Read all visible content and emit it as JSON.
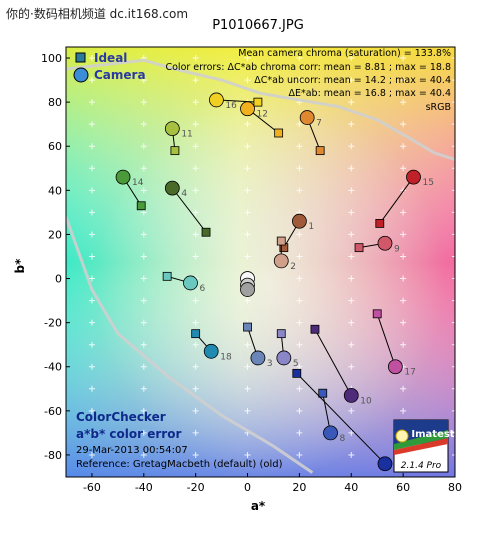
{
  "watermark": "你的·数码相机频道 dc.it168.com",
  "chart_data": {
    "type": "scatter",
    "title": "P1010667.JPG",
    "xlabel": "a*",
    "ylabel": "b*",
    "xlim": [
      -70,
      80
    ],
    "ylim": [
      -90,
      105
    ],
    "xticks": [
      -60,
      -40,
      -20,
      0,
      20,
      40,
      60,
      80
    ],
    "yticks": [
      -80,
      -60,
      -40,
      -20,
      0,
      20,
      40,
      60,
      80,
      100
    ],
    "grid": true,
    "legend": [
      {
        "name": "Ideal",
        "marker": "square",
        "color": "#2a7a9a"
      },
      {
        "name": "Camera",
        "marker": "circle",
        "color": "#3b8ed6"
      }
    ],
    "stats": [
      "Mean camera chroma (saturation) = 133.8%",
      "Color errors:  ΔC*ab chroma corr:  mean = 8.81 ;  max = 18.8",
      "ΔC*ab uncorr:  mean = 14.2 ;  max = 40.4",
      "ΔE*ab:  mean = 16.8 ;  max = 40.4",
      "sRGB"
    ],
    "info": {
      "name": "ColorChecker",
      "subtitle": "a*b* color error",
      "date": "29-Mar-2013 00:54:07",
      "reference": "Reference: GretagMacbeth (default) (old)"
    },
    "badge": {
      "brand": "Imatest",
      "version": "2.1.4 Pro"
    },
    "srgb_gamut": [
      [
        -70,
        95
      ],
      [
        -55,
        97
      ],
      [
        -40,
        99
      ],
      [
        -28,
        95
      ],
      [
        -10,
        90
      ],
      [
        5,
        84
      ],
      [
        20,
        81
      ],
      [
        35,
        78
      ],
      [
        50,
        72
      ],
      [
        62,
        64
      ],
      [
        72,
        57
      ],
      [
        80,
        54
      ]
    ],
    "points": [
      {
        "id": "1",
        "ideal": [
          14,
          14
        ],
        "camera": [
          20,
          26
        ],
        "color": "#a05a3a"
      },
      {
        "id": "2",
        "ideal": [
          13,
          17
        ],
        "camera": [
          13,
          8
        ],
        "color": "#d1a08a"
      },
      {
        "id": "3",
        "ideal": [
          0,
          -22
        ],
        "camera": [
          4,
          -36
        ],
        "color": "#6a86b8"
      },
      {
        "id": "4",
        "ideal": [
          -16,
          21
        ],
        "camera": [
          -29,
          41
        ],
        "color": "#4a6a2a"
      },
      {
        "id": "5",
        "ideal": [
          13,
          -25
        ],
        "camera": [
          14,
          -36
        ],
        "color": "#8a86c8"
      },
      {
        "id": "6",
        "ideal": [
          -31,
          1
        ],
        "camera": [
          -22,
          -2
        ],
        "color": "#6ac8c0"
      },
      {
        "id": "7",
        "ideal": [
          28,
          58
        ],
        "camera": [
          23,
          73
        ],
        "color": "#e08830"
      },
      {
        "id": "8",
        "ideal": [
          29,
          -52
        ],
        "camera": [
          32,
          -70
        ],
        "color": "#3a58b8"
      },
      {
        "id": "9",
        "ideal": [
          43,
          14
        ],
        "camera": [
          53,
          16
        ],
        "color": "#d05868"
      },
      {
        "id": "10",
        "ideal": [
          26,
          -23
        ],
        "camera": [
          40,
          -53
        ],
        "color": "#502a7a"
      },
      {
        "id": "11",
        "ideal": [
          -28,
          58
        ],
        "camera": [
          -29,
          68
        ],
        "color": "#a8c040"
      },
      {
        "id": "12",
        "ideal": [
          12,
          66
        ],
        "camera": [
          0,
          77
        ],
        "color": "#f0b020"
      },
      {
        "id": "13",
        "ideal": [
          19,
          -43
        ],
        "camera": [
          53,
          -84
        ],
        "color": "#1a30a0"
      },
      {
        "id": "14",
        "ideal": [
          -41,
          33
        ],
        "camera": [
          -48,
          46
        ],
        "color": "#4a9a3a"
      },
      {
        "id": "15",
        "ideal": [
          51,
          25
        ],
        "camera": [
          64,
          46
        ],
        "color": "#c02028"
      },
      {
        "id": "16",
        "ideal": [
          4,
          80
        ],
        "camera": [
          -12,
          81
        ],
        "color": "#f0d020"
      },
      {
        "id": "17",
        "ideal": [
          50,
          -16
        ],
        "camera": [
          57,
          -40
        ],
        "color": "#c050a0"
      },
      {
        "id": "18",
        "ideal": [
          -20,
          -25
        ],
        "camera": [
          -14,
          -33
        ],
        "color": "#208ab0"
      },
      {
        "id": "19",
        "ideal": [
          0,
          0
        ],
        "camera": [
          0,
          0
        ],
        "color": "#f8f8f8"
      },
      {
        "id": "20",
        "ideal": [
          0,
          -3
        ],
        "camera": [
          0,
          -3
        ],
        "color": "#cccccc"
      },
      {
        "id": "21",
        "ideal": [
          0,
          -5
        ],
        "camera": [
          0,
          -5
        ],
        "color": "#a0a0a0"
      }
    ]
  }
}
